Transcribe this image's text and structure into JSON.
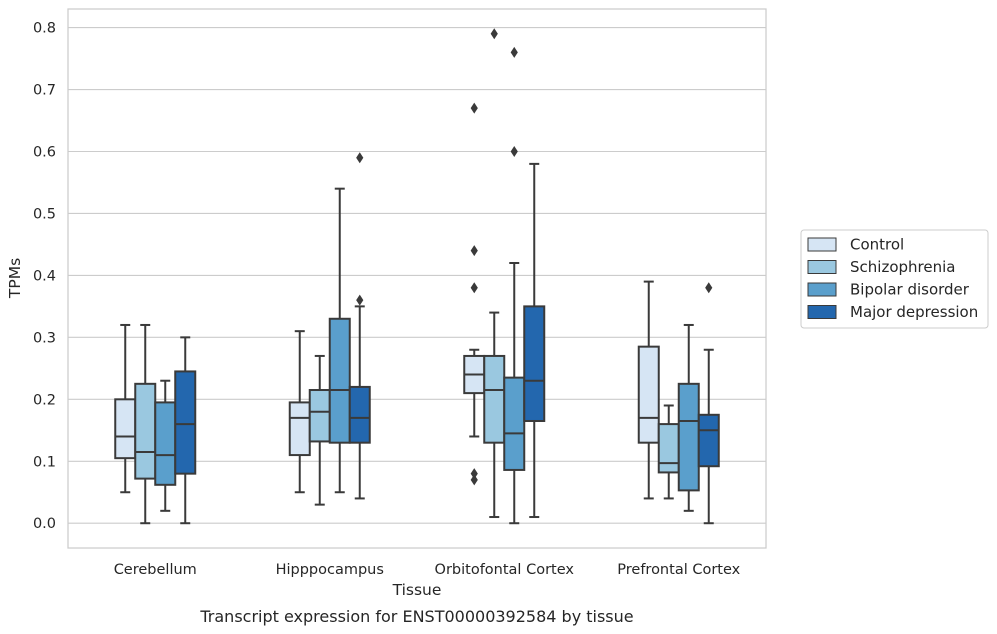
{
  "chart_data": {
    "type": "box",
    "xlabel": "Tissue",
    "ylabel": "TPMs",
    "caption": "Transcript expression for ENST00000392584 by tissue",
    "ylim": [
      -0.04,
      0.83
    ],
    "yticks": [
      "0.0",
      "0.1",
      "0.2",
      "0.3",
      "0.4",
      "0.5",
      "0.6",
      "0.7",
      "0.8"
    ],
    "grid": true,
    "legend_position": "right",
    "categories": [
      "Cerebellum",
      "Hipppocampus",
      "Orbitofontal Cortex",
      "Prefrontal Cortex"
    ],
    "series": [
      {
        "name": "Control",
        "color": "#d6e5f4",
        "boxes": [
          {
            "whislo": 0.05,
            "q1": 0.105,
            "med": 0.14,
            "q3": 0.2,
            "whishi": 0.32,
            "fliers": []
          },
          {
            "whislo": 0.05,
            "q1": 0.11,
            "med": 0.17,
            "q3": 0.195,
            "whishi": 0.31,
            "fliers": []
          },
          {
            "whislo": 0.14,
            "q1": 0.21,
            "med": 0.24,
            "q3": 0.27,
            "whishi": 0.28,
            "fliers": [
              0.67,
              0.44,
              0.38,
              0.08,
              0.07
            ]
          },
          {
            "whislo": 0.04,
            "q1": 0.13,
            "med": 0.17,
            "q3": 0.285,
            "whishi": 0.39,
            "fliers": []
          }
        ]
      },
      {
        "name": "Schizophrenia",
        "color": "#9ac8e0",
        "boxes": [
          {
            "whislo": 0.0,
            "q1": 0.072,
            "med": 0.115,
            "q3": 0.225,
            "whishi": 0.32,
            "fliers": []
          },
          {
            "whislo": 0.03,
            "q1": 0.132,
            "med": 0.18,
            "q3": 0.215,
            "whishi": 0.27,
            "fliers": []
          },
          {
            "whislo": 0.01,
            "q1": 0.13,
            "med": 0.215,
            "q3": 0.27,
            "whishi": 0.34,
            "fliers": [
              0.79
            ]
          },
          {
            "whislo": 0.04,
            "q1": 0.082,
            "med": 0.097,
            "q3": 0.16,
            "whishi": 0.19,
            "fliers": []
          }
        ]
      },
      {
        "name": "Bipolar disorder",
        "color": "#5a9fcc",
        "boxes": [
          {
            "whislo": 0.02,
            "q1": 0.062,
            "med": 0.11,
            "q3": 0.195,
            "whishi": 0.23,
            "fliers": []
          },
          {
            "whislo": 0.05,
            "q1": 0.13,
            "med": 0.215,
            "q3": 0.33,
            "whishi": 0.54,
            "fliers": []
          },
          {
            "whislo": 0.0,
            "q1": 0.086,
            "med": 0.145,
            "q3": 0.235,
            "whishi": 0.42,
            "fliers": [
              0.76,
              0.6
            ]
          },
          {
            "whislo": 0.02,
            "q1": 0.053,
            "med": 0.165,
            "q3": 0.225,
            "whishi": 0.32,
            "fliers": []
          }
        ]
      },
      {
        "name": "Major depression",
        "color": "#2367ae",
        "boxes": [
          {
            "whislo": 0.0,
            "q1": 0.08,
            "med": 0.16,
            "q3": 0.245,
            "whishi": 0.3,
            "fliers": []
          },
          {
            "whislo": 0.04,
            "q1": 0.13,
            "med": 0.17,
            "q3": 0.22,
            "whishi": 0.35,
            "fliers": [
              0.59,
              0.36
            ]
          },
          {
            "whislo": 0.01,
            "q1": 0.165,
            "med": 0.23,
            "q3": 0.35,
            "whishi": 0.58,
            "fliers": []
          },
          {
            "whislo": 0.0,
            "q1": 0.092,
            "med": 0.15,
            "q3": 0.175,
            "whishi": 0.28,
            "fliers": [
              0.38
            ]
          }
        ]
      }
    ]
  }
}
